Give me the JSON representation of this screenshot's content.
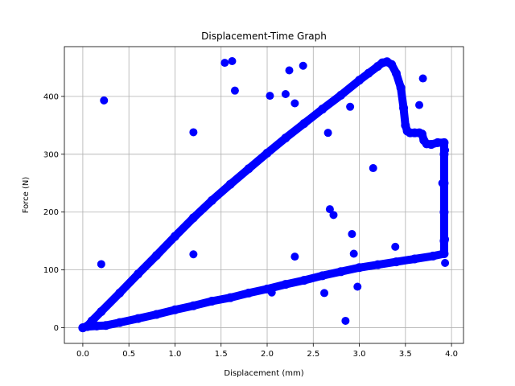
{
  "chart_data": {
    "type": "scatter",
    "title": "Displacement-Time Graph",
    "xlabel": "Displacement (mm)",
    "ylabel": "Force (N)",
    "xlim": [
      -0.2,
      4.13
    ],
    "ylim": [
      -27,
      486
    ],
    "xticks": [
      "0.0",
      "0.5",
      "1.0",
      "1.5",
      "2.0",
      "2.5",
      "3.0",
      "3.5",
      "4.0"
    ],
    "yticks": [
      "0",
      "100",
      "200",
      "300",
      "400"
    ],
    "grid": true,
    "color": "#0000ff",
    "series": [
      {
        "curve": true,
        "points": [
          [
            0.0,
            0
          ],
          [
            0.05,
            3
          ],
          [
            0.1,
            12
          ],
          [
            0.2,
            28
          ],
          [
            0.4,
            60
          ],
          [
            0.6,
            93
          ],
          [
            0.8,
            125
          ],
          [
            1.0,
            158
          ],
          [
            1.2,
            190
          ],
          [
            1.4,
            220
          ],
          [
            1.6,
            248
          ],
          [
            1.8,
            275
          ],
          [
            2.0,
            302
          ],
          [
            2.2,
            328
          ],
          [
            2.4,
            353
          ],
          [
            2.6,
            378
          ],
          [
            2.8,
            402
          ],
          [
            3.0,
            428
          ],
          [
            3.1,
            440
          ],
          [
            3.2,
            452
          ],
          [
            3.25,
            458
          ],
          [
            3.3,
            460
          ],
          [
            3.35,
            455
          ],
          [
            3.4,
            440
          ],
          [
            3.45,
            415
          ],
          [
            3.48,
            380
          ],
          [
            3.5,
            350
          ],
          [
            3.52,
            340
          ],
          [
            3.55,
            337
          ],
          [
            3.6,
            337
          ],
          [
            3.65,
            337
          ],
          [
            3.68,
            335
          ],
          [
            3.7,
            324
          ],
          [
            3.73,
            318
          ],
          [
            3.78,
            317
          ],
          [
            3.85,
            320
          ],
          [
            3.92,
            320
          ],
          [
            3.92,
            300
          ],
          [
            3.92,
            250
          ],
          [
            3.92,
            200
          ],
          [
            3.92,
            150
          ],
          [
            3.92,
            128
          ],
          [
            3.8,
            124
          ],
          [
            3.6,
            119
          ],
          [
            3.4,
            114
          ],
          [
            3.2,
            109
          ],
          [
            3.0,
            104
          ],
          [
            2.8,
            97
          ],
          [
            2.6,
            90
          ],
          [
            2.4,
            82
          ],
          [
            2.2,
            75
          ],
          [
            2.0,
            67
          ],
          [
            1.8,
            60
          ],
          [
            1.6,
            52
          ],
          [
            1.4,
            46
          ],
          [
            1.2,
            38
          ],
          [
            1.0,
            31
          ],
          [
            0.8,
            23
          ],
          [
            0.6,
            16
          ],
          [
            0.4,
            9
          ],
          [
            0.25,
            4
          ],
          [
            0.15,
            3
          ],
          [
            0.05,
            2
          ],
          [
            0.0,
            0
          ]
        ]
      },
      {
        "curve": false,
        "points": [
          [
            0.23,
            393
          ],
          [
            0.2,
            110
          ],
          [
            1.2,
            338
          ],
          [
            1.2,
            127
          ],
          [
            1.54,
            458
          ],
          [
            1.62,
            461
          ],
          [
            1.65,
            410
          ],
          [
            2.03,
            401
          ],
          [
            2.2,
            404
          ],
          [
            2.24,
            445
          ],
          [
            2.3,
            388
          ],
          [
            2.39,
            453
          ],
          [
            2.3,
            123
          ],
          [
            2.05,
            61
          ],
          [
            2.62,
            60
          ],
          [
            2.66,
            337
          ],
          [
            2.68,
            205
          ],
          [
            2.72,
            195
          ],
          [
            2.9,
            382
          ],
          [
            2.92,
            162
          ],
          [
            2.94,
            128
          ],
          [
            2.98,
            71
          ],
          [
            2.85,
            12
          ],
          [
            3.15,
            276
          ],
          [
            3.39,
            140
          ],
          [
            3.65,
            385
          ],
          [
            3.69,
            431
          ],
          [
            3.9,
            250
          ],
          [
            3.93,
            307
          ],
          [
            3.93,
            153
          ],
          [
            3.93,
            112
          ]
        ]
      }
    ]
  }
}
